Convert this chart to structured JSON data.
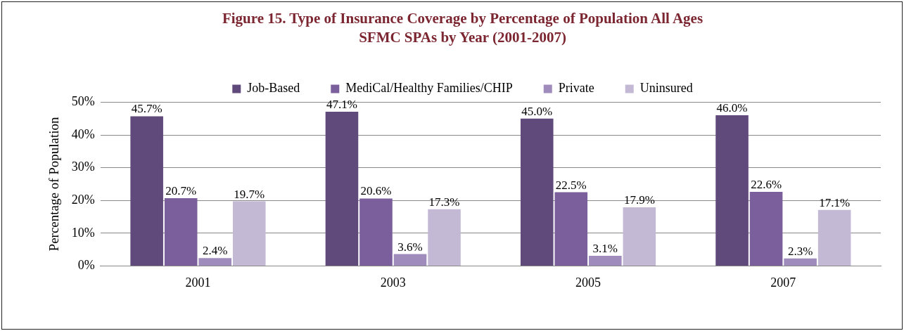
{
  "chart_data": {
    "type": "bar",
    "title": "Figure 15. Type of Insurance Coverage by Percentage of Population All Ages",
    "subtitle": "SFMC SPAs by Year (2001-2007)",
    "ylabel": "Percentage of Population",
    "categories": [
      "2001",
      "2003",
      "2005",
      "2007"
    ],
    "series": [
      {
        "name": "Job-Based",
        "color": "#604a7b",
        "values": [
          45.7,
          47.1,
          45.0,
          46.0
        ],
        "value_labels": [
          "45.7%",
          "47.1%",
          "45.0%",
          "46.0%"
        ]
      },
      {
        "name": "MediCal/Healthy Families/CHIP",
        "color": "#7b5f9c",
        "values": [
          20.7,
          20.6,
          22.5,
          22.6
        ],
        "value_labels": [
          "20.7%",
          "20.6%",
          "22.5%",
          "22.6%"
        ]
      },
      {
        "name": "Private",
        "color": "#a08cbc",
        "values": [
          2.4,
          3.6,
          3.1,
          2.3
        ],
        "value_labels": [
          "2.4%",
          "3.6%",
          "3.1%",
          "2.3%"
        ]
      },
      {
        "name": "Uninsured",
        "color": "#c4b9d5",
        "values": [
          19.7,
          17.3,
          17.9,
          17.1
        ],
        "value_labels": [
          "19.7%",
          "17.3%",
          "17.9%",
          "17.1%"
        ]
      }
    ],
    "ylim": [
      0,
      50
    ],
    "yticks": [
      {
        "value": 0,
        "label": "0%"
      },
      {
        "value": 10,
        "label": "10%"
      },
      {
        "value": 20,
        "label": "20%"
      },
      {
        "value": 30,
        "label": "30%"
      },
      {
        "value": 40,
        "label": "40%"
      },
      {
        "value": 50,
        "label": "50%"
      }
    ],
    "grid": "y",
    "legend": "top"
  }
}
